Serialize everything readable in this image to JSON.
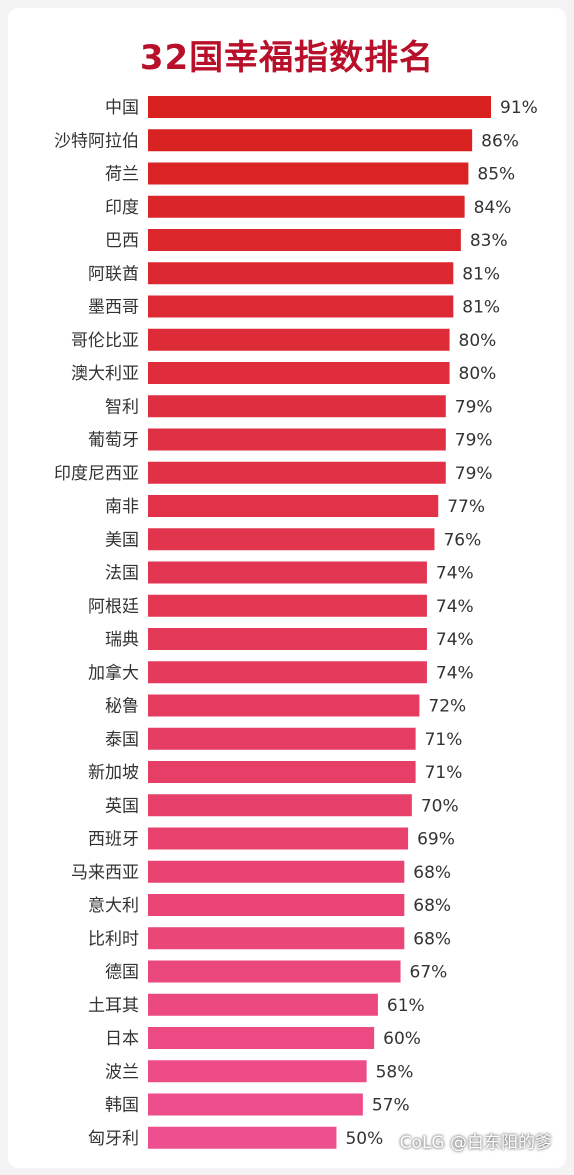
{
  "watermark": "CoLG @白东阳的爹",
  "chart_data": {
    "type": "bar",
    "orientation": "horizontal",
    "title": "32国幸福指数排名",
    "unit": "%",
    "xlim": [
      0,
      100
    ],
    "grid": false,
    "colors": {
      "top": "#d8201e",
      "bottom": "#ee4f8e",
      "label": "#333333",
      "title": "#b8102a"
    },
    "categories": [
      "中国",
      "沙特阿拉伯",
      "荷兰",
      "印度",
      "巴西",
      "阿联酋",
      "墨西哥",
      "哥伦比亚",
      "澳大利亚",
      "智利",
      "葡萄牙",
      "印度尼西亚",
      "南非",
      "美国",
      "法国",
      "阿根廷",
      "瑞典",
      "加拿大",
      "秘鲁",
      "泰国",
      "新加坡",
      "英国",
      "西班牙",
      "马来西亚",
      "意大利",
      "比利时",
      "德国",
      "土耳其",
      "日本",
      "波兰",
      "韩国",
      "匈牙利"
    ],
    "values": [
      91,
      86,
      85,
      84,
      83,
      81,
      81,
      80,
      80,
      79,
      79,
      79,
      77,
      76,
      74,
      74,
      74,
      74,
      72,
      71,
      71,
      70,
      69,
      68,
      68,
      68,
      67,
      61,
      60,
      58,
      57,
      50
    ],
    "data_labels": [
      "91%",
      "86%",
      "85%",
      "84%",
      "83%",
      "81%",
      "81%",
      "80%",
      "80%",
      "79%",
      "79%",
      "79%",
      "77%",
      "76%",
      "74%",
      "74%",
      "74%",
      "74%",
      "72%",
      "71%",
      "71%",
      "70%",
      "69%",
      "68%",
      "68%",
      "68%",
      "67%",
      "61%",
      "60%",
      "58%",
      "57%",
      "50%"
    ]
  }
}
